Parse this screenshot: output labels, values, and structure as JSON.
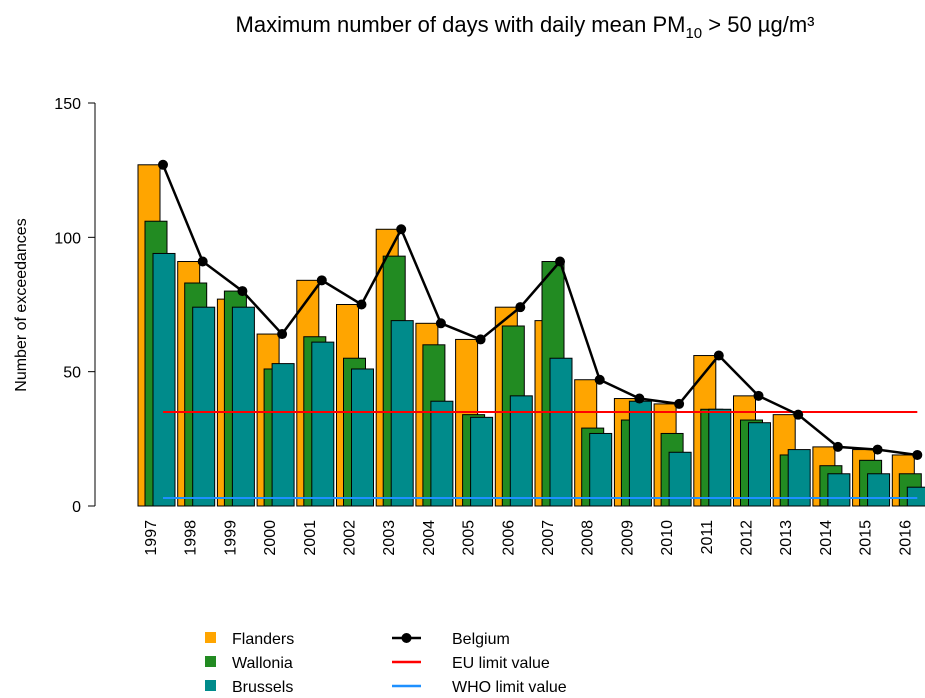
{
  "chart_data": {
    "type": "bar",
    "title": [
      "Maximum number of days with daily mean PM",
      "10",
      " > 50 µg/m³"
    ],
    "ylabel": "Number of exceedances",
    "categories": [
      "1997",
      "1998",
      "1999",
      "2000",
      "2001",
      "2002",
      "2003",
      "2004",
      "2005",
      "2006",
      "2007",
      "2008",
      "2009",
      "2010",
      "2011",
      "2012",
      "2013",
      "2014",
      "2015",
      "2016"
    ],
    "series": [
      {
        "name": "Flanders",
        "color": "#FFA500",
        "values": [
          127,
          91,
          77,
          64,
          84,
          75,
          103,
          68,
          62,
          74,
          69,
          47,
          40,
          38,
          56,
          41,
          34,
          22,
          21,
          19
        ]
      },
      {
        "name": "Wallonia",
        "color": "#228B22",
        "values": [
          106,
          83,
          80,
          51,
          63,
          55,
          93,
          60,
          34,
          67,
          91,
          29,
          32,
          27,
          36,
          32,
          19,
          15,
          17,
          12
        ]
      },
      {
        "name": "Brussels",
        "color": "#008B8B",
        "values": [
          94,
          74,
          74,
          53,
          61,
          51,
          69,
          39,
          33,
          41,
          55,
          27,
          39,
          20,
          36,
          31,
          21,
          12,
          12,
          7
        ]
      }
    ],
    "line": {
      "name": "Belgium",
      "color": "#000000",
      "values": [
        127,
        91,
        80,
        64,
        84,
        75,
        103,
        68,
        62,
        74,
        91,
        47,
        40,
        38,
        56,
        41,
        34,
        22,
        21,
        19
      ]
    },
    "limits": [
      {
        "name": "EU limit value",
        "color": "#FF0000",
        "value": 35
      },
      {
        "name": "WHO limit value",
        "color": "#1E90FF",
        "value": 3
      }
    ],
    "ylim": [
      0,
      150
    ],
    "yticks": [
      0,
      50,
      100,
      150
    ]
  }
}
